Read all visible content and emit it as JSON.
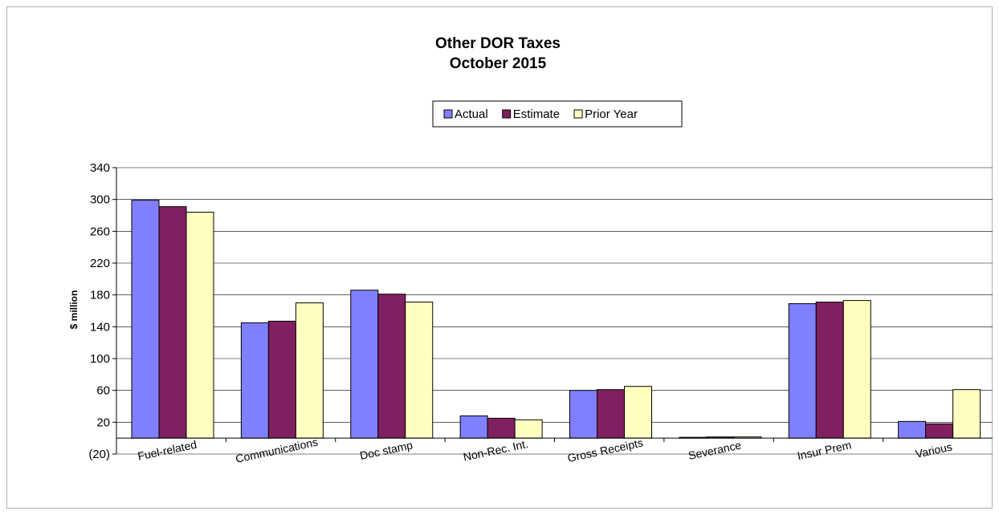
{
  "chart_data": {
    "type": "bar",
    "title": [
      "Other DOR Taxes",
      "October 2015"
    ],
    "ylabel": "$ million",
    "ylim": [
      -20,
      340
    ],
    "yticks": [
      -20,
      20,
      60,
      100,
      140,
      180,
      220,
      260,
      300,
      340
    ],
    "ytick_labels": [
      "(20)",
      "20",
      "60",
      "100",
      "140",
      "180",
      "220",
      "260",
      "300",
      "340"
    ],
    "categories": [
      "Fuel-related",
      "Communications",
      "Doc stamp",
      "Non-Rec. Int.",
      "Gross Receipts",
      "Severance",
      "Insur Prem",
      "Various"
    ],
    "series": [
      {
        "name": "Actual",
        "color": "#8080ff",
        "values": [
          299,
          145,
          186,
          28,
          60,
          1,
          169,
          21
        ]
      },
      {
        "name": "Estimate",
        "color": "#802060",
        "values": [
          291,
          147,
          181,
          25,
          61,
          1.5,
          171,
          18
        ]
      },
      {
        "name": "Prior Year",
        "color": "#ffffc0",
        "values": [
          284,
          170,
          171,
          23,
          65,
          1.5,
          173,
          61
        ]
      }
    ],
    "legend_position": "top-center",
    "grid": true
  }
}
